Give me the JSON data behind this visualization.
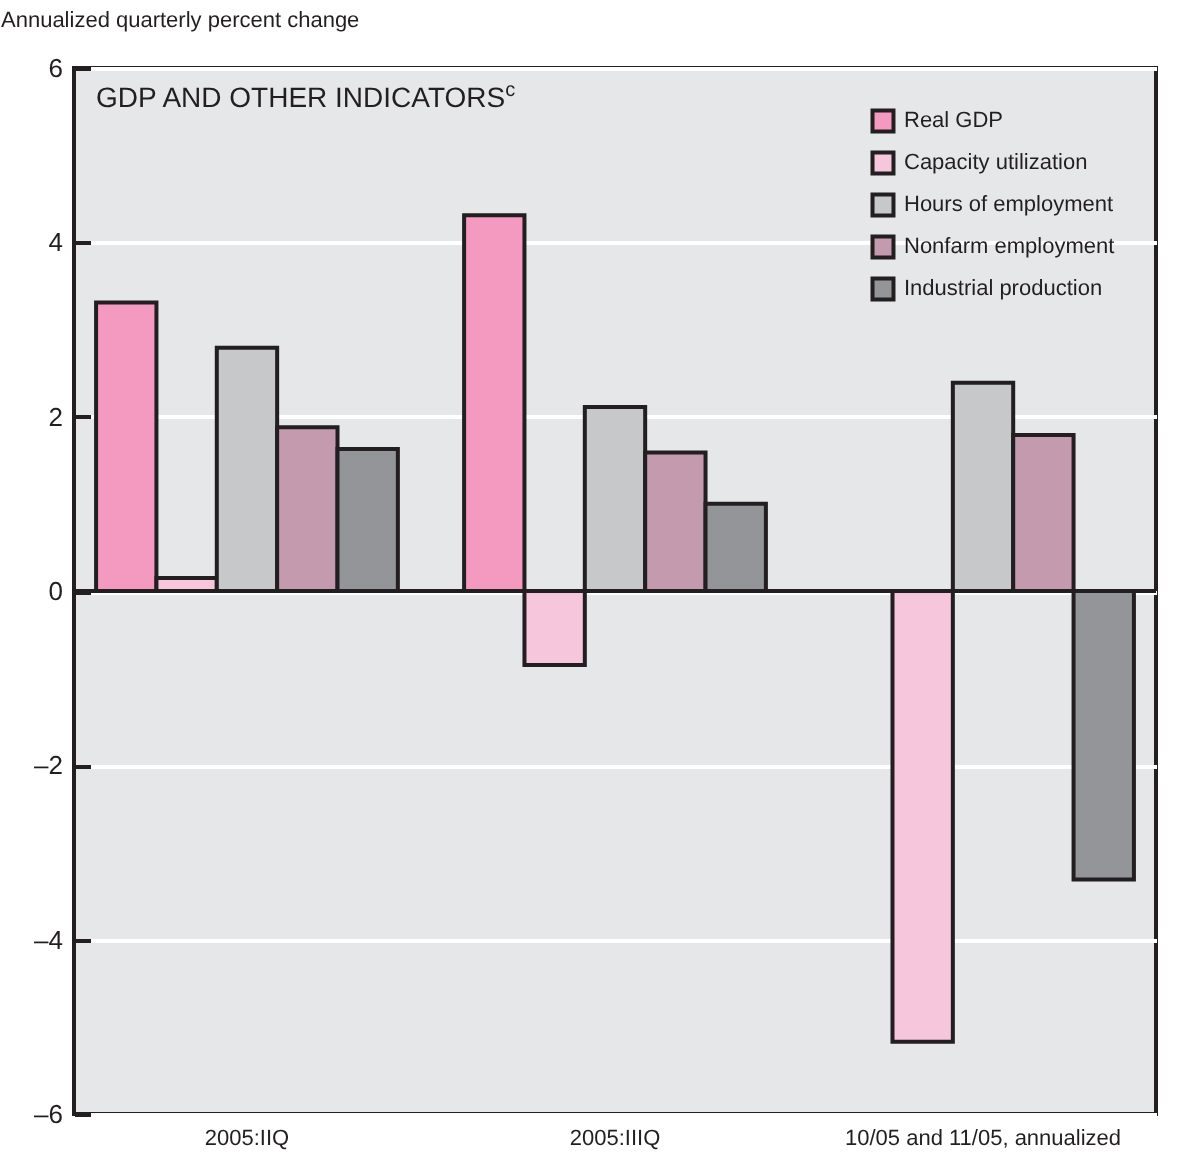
{
  "chart_data": {
    "type": "bar",
    "title": "GDP AND OTHER INDICATORS$^{c}$",
    "ylabel": "Annualized quarterly percent change",
    "categories": [
      "2005:IIQ",
      "2005:IIIQ",
      "10/05 and 11/05, annualized"
    ],
    "series": [
      {
        "name": "Real GDP",
        "color": "#f49ac1",
        "values": [
          3.31,
          4.31,
          null
        ]
      },
      {
        "name": "Capacity utilization",
        "color": "#f6c6dd",
        "values": [
          0.15,
          -0.85,
          -5.17
        ]
      },
      {
        "name": "Hours of employment",
        "color": "#c6c8ca",
        "values": [
          2.79,
          2.11,
          2.39
        ]
      },
      {
        "name": "Nonfarm employment",
        "color": "#c49bae",
        "values": [
          1.88,
          1.59,
          1.79
        ]
      },
      {
        "name": "Industrial production",
        "color": "#939598",
        "values": [
          1.63,
          1.0,
          -3.31
        ]
      }
    ],
    "ylim": [
      -6,
      6
    ],
    "yticks": [
      {
        "value": -6,
        "label": "–6"
      },
      {
        "value": -4,
        "label": "–4"
      },
      {
        "value": -2,
        "label": "–2"
      },
      0,
      2,
      4,
      6
    ],
    "ref_lines": [
      {
        "axis": "y",
        "value": 0,
        "color": "#231f20"
      }
    ],
    "grid": "y",
    "legend": "top right"
  }
}
